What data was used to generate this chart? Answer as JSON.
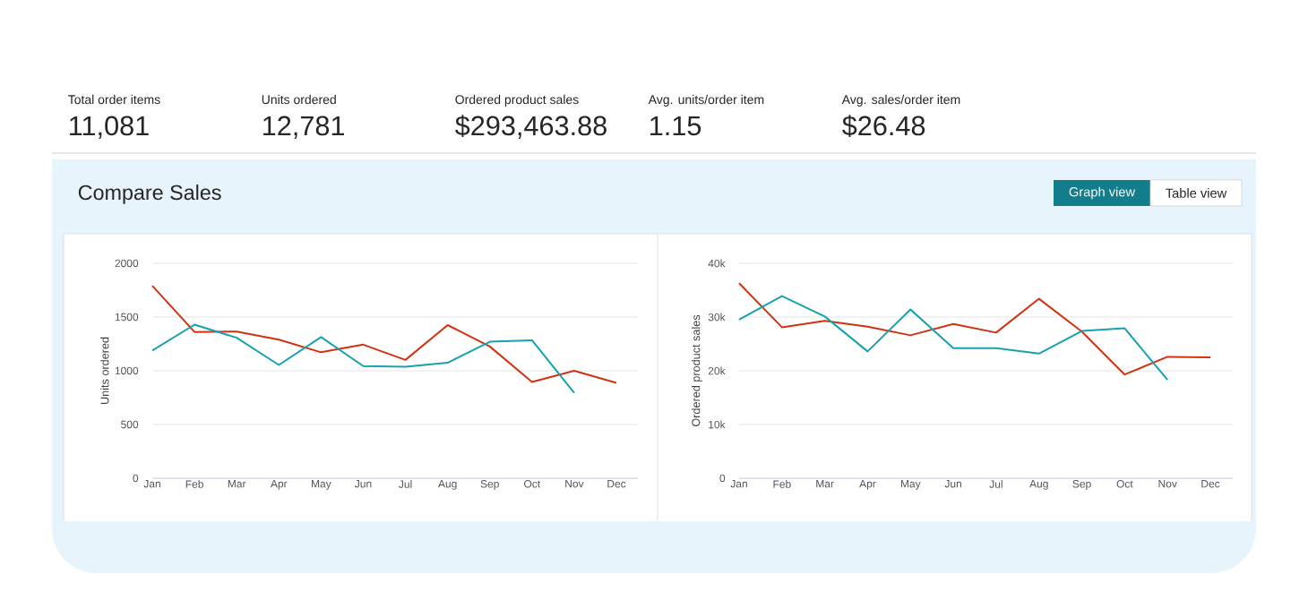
{
  "chart_data": [
    {
      "type": "other",
      "annotations": [
        "Total order items",
        "11,081",
        "Units ordered",
        "12,781",
        "Ordered product sales",
        "$293,463.88",
        "Avg. units/order item",
        "1.15",
        "Avg. sales/order item",
        "$26.48",
        "Compare Sales",
        "Graph view",
        "Table view"
      ]
    },
    {
      "type": "line",
      "ylabel": "Units ordered",
      "categories": [
        "Jan",
        "Feb",
        "Mar",
        "Apr",
        "May",
        "Jun",
        "Jul",
        "Aug",
        "Sep",
        "Oct",
        "Nov",
        "Dec"
      ],
      "series": [
        {
          "color": "#d13212",
          "values": [
            1790,
            1361,
            1365,
            1290,
            1172,
            1243,
            1101,
            1425,
            1226,
            895,
            1000,
            888
          ]
        },
        {
          "color": "#16a2ae",
          "values": [
            1189,
            1429,
            1307,
            1054,
            1314,
            1044,
            1037,
            1074,
            1270,
            1284,
            794,
            null
          ]
        }
      ],
      "ylim": [
        0,
        2000
      ],
      "yticks": [
        0,
        500,
        1000,
        1500,
        2000
      ],
      "grid": "y",
      "marker": "none"
    },
    {
      "type": "line",
      "ylabel": "Ordered product sales",
      "categories": [
        "Jan",
        "Feb",
        "Mar",
        "Apr",
        "May",
        "Jun",
        "Jul",
        "Aug",
        "Sep",
        "Oct",
        "Nov",
        "Dec"
      ],
      "series": [
        {
          "color": "#d13212",
          "values": [
            36300,
            28100,
            29300,
            28200,
            26600,
            28700,
            27100,
            33400,
            27300,
            19300,
            22600,
            22500
          ]
        },
        {
          "color": "#16a2ae",
          "values": [
            29500,
            33900,
            30100,
            23600,
            31400,
            24200,
            24200,
            23200,
            27400,
            27900,
            18300,
            null
          ]
        }
      ],
      "ylim": [
        0,
        40000
      ],
      "yticks": [
        {
          "value": 0,
          "label": "0"
        },
        {
          "value": 10000,
          "label": "10k"
        },
        {
          "value": 20000,
          "label": "20k"
        },
        {
          "value": 30000,
          "label": "30k"
        },
        {
          "value": 40000,
          "label": "40k"
        }
      ],
      "grid": "y",
      "marker": "none"
    }
  ]
}
